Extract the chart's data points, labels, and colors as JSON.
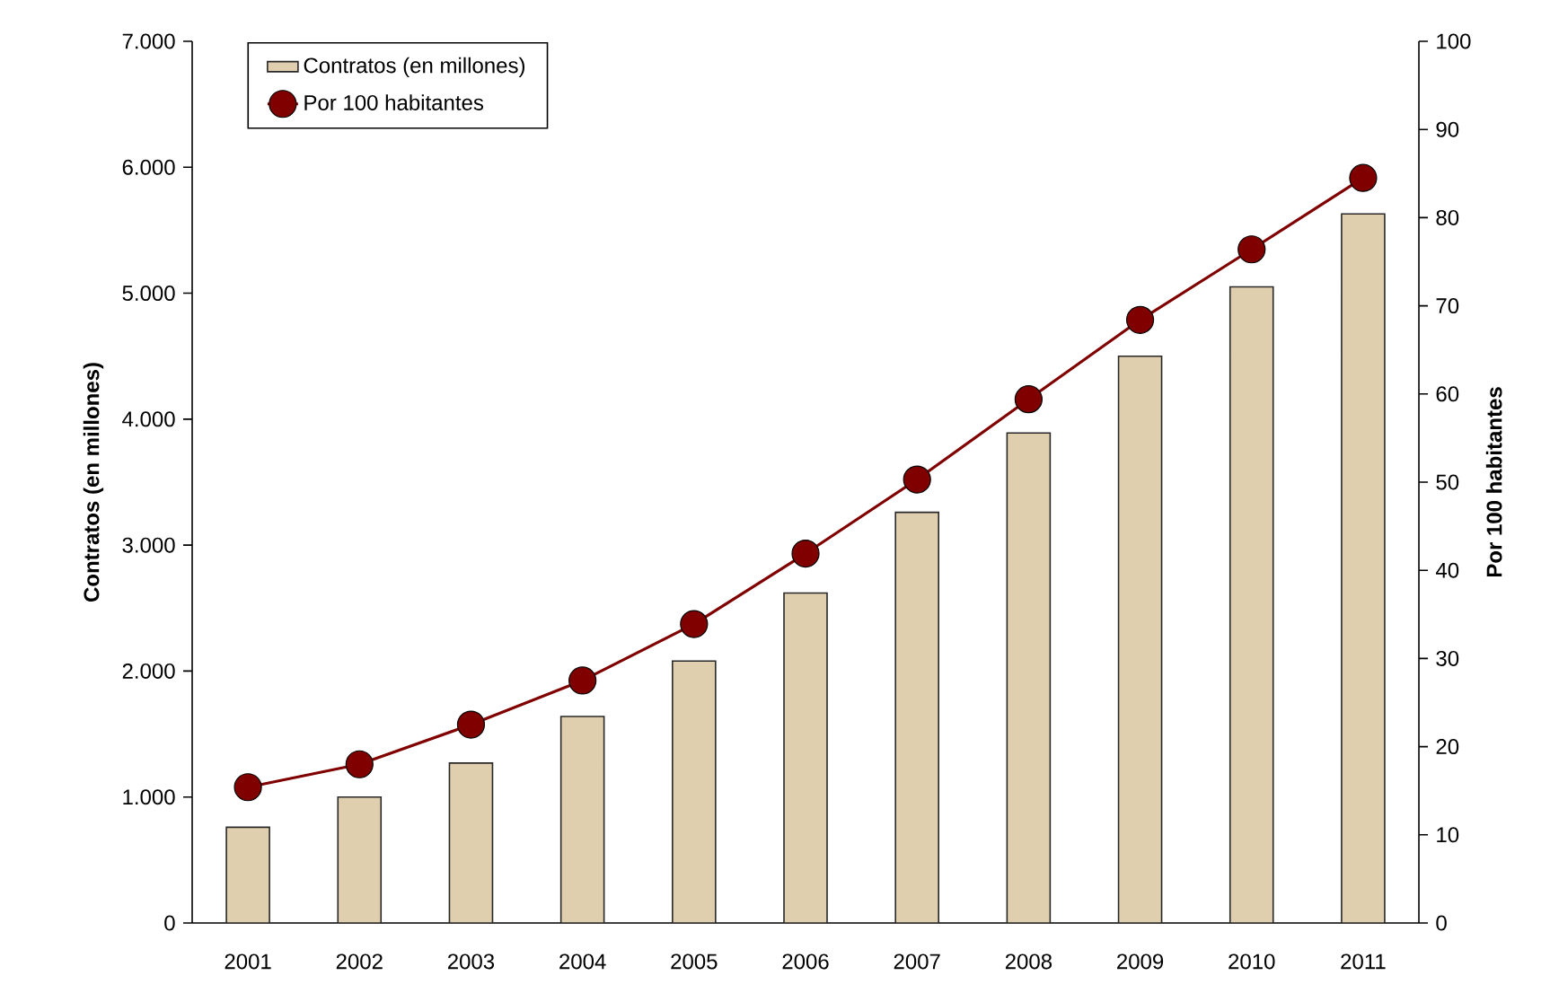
{
  "chart_data": {
    "type": "bar",
    "categories": [
      "2001",
      "2002",
      "2003",
      "2004",
      "2005",
      "2006",
      "2007",
      "2008",
      "2009",
      "2010",
      "2011"
    ],
    "series": [
      {
        "name": "Contratos (en millones)",
        "color": "#e0cfae",
        "values": [
          760,
          1000,
          1270,
          1640,
          2080,
          2620,
          3260,
          3890,
          4500,
          5050,
          5630
        ]
      },
      {
        "name": "Por 100 habitantes",
        "type": "line",
        "axis": "y2",
        "color": "#800000",
        "values": [
          15.4,
          18.0,
          22.5,
          27.5,
          33.9,
          41.9,
          50.3,
          59.4,
          68.4,
          76.4,
          84.5
        ]
      }
    ],
    "ylabel": "Contratos (en millones)",
    "y2label": "Por 100 habitantes",
    "ylim": [
      0,
      7000
    ],
    "yticks": [
      0,
      {
        "value": 1000,
        "label": "1.000"
      },
      {
        "value": 2000,
        "label": "2.000"
      },
      {
        "value": 3000,
        "label": "3.000"
      },
      {
        "value": 4000,
        "label": "4.000"
      },
      {
        "value": 5000,
        "label": "5.000"
      },
      {
        "value": 6000,
        "label": "6.000"
      },
      {
        "value": 7000,
        "label": "7.000"
      }
    ],
    "y2lim": [
      0,
      100
    ],
    "y2ticks": [
      0,
      10,
      20,
      30,
      40,
      50,
      60,
      70,
      80,
      90,
      100
    ],
    "legend": "top left",
    "marker": "circle",
    "line_style": "solid"
  }
}
